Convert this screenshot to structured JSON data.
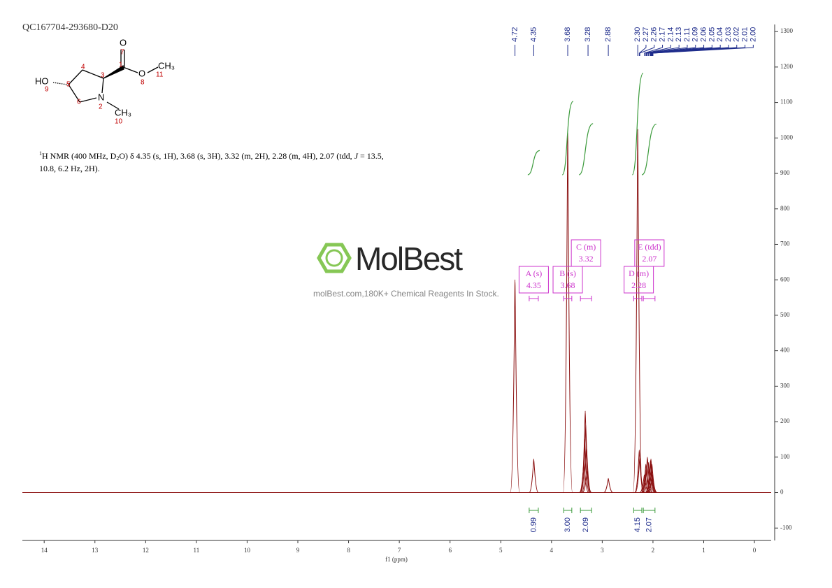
{
  "chart_data": {
    "type": "nmr",
    "compound_id": "QC167704-293680-D20",
    "nmr_text": {
      "line1": [
        "1",
        "H NMR (400 MHz, D",
        "2",
        "O) δ 4.35 (s, 1H), 3.68 (s, 3H), 3.32 (m, 2H), 2.28 (m, 4H), 2.07 (tdd, ",
        "J",
        " = 13.5,"
      ],
      "line2": "10.8, 6.2 Hz, 2H)."
    },
    "structure": {
      "atoms": [
        "O",
        "O",
        "CH₃",
        "HO",
        "N",
        "CH₃"
      ],
      "numbers": [
        "7",
        "1",
        "3",
        "4",
        "5",
        "9",
        "6",
        "2",
        "8",
        "11",
        "10"
      ]
    },
    "watermark": {
      "brand": "MolBest",
      "tagline": "molBest.com,180K+ Chemical Reagents In Stock."
    },
    "xlabel": "f1 (ppm)",
    "xlim": [
      14.43,
      -0.33
    ],
    "xticks": [
      14,
      13,
      12,
      11,
      10,
      9,
      8,
      7,
      6,
      5,
      4,
      3,
      2,
      1,
      0
    ],
    "ylim": [
      -135,
      1320
    ],
    "yticks": [
      -100,
      0,
      100,
      200,
      300,
      400,
      500,
      600,
      700,
      800,
      900,
      1000,
      1100,
      1200,
      1300
    ],
    "spectrum": {
      "color": "#8b1010",
      "x": [
        4.72,
        4.35,
        3.68,
        3.36,
        3.345,
        3.335,
        3.325,
        3.31,
        3.3,
        2.88,
        2.3,
        2.27,
        2.26,
        2.17,
        2.14,
        2.13,
        2.11,
        2.09,
        2.06,
        2.05,
        2.04,
        2.03,
        2.02,
        2.01
      ],
      "values": [
        600,
        95,
        1015,
        90,
        150,
        230,
        190,
        130,
        60,
        40,
        1025,
        120,
        100,
        50,
        80,
        70,
        100,
        85,
        70,
        90,
        95,
        60,
        80,
        50
      ]
    },
    "peak_labels": {
      "color": "#1f2d8c",
      "labels": [
        "4.72",
        "4.35",
        "3.68",
        "3.28",
        "2.88",
        "2.30",
        "2.27",
        "2.26",
        "2.17",
        "2.14",
        "2.13",
        "2.11",
        "2.09",
        "2.06",
        "2.05",
        "2.04",
        "2.03",
        "2.02",
        "2.01",
        "2.00"
      ]
    },
    "integrals": {
      "color": "#3a9a3a",
      "label_color": "#1f2d8c",
      "values": [
        0.99,
        3.0,
        2.09,
        4.15,
        2.07
      ],
      "value_labels": [
        "0.99",
        "3.00",
        "2.09",
        "4.15",
        "2.07"
      ],
      "from": [
        4.44,
        3.76,
        3.43,
        2.38,
        2.19
      ],
      "to": [
        4.26,
        3.6,
        3.21,
        2.22,
        1.96
      ]
    },
    "multiplets": {
      "color": "#cc33cc",
      "labels": [
        "A (s)",
        "B (s)",
        "C (m)",
        "D (m)",
        "E (tdd)"
      ],
      "shifts": [
        "4.35",
        "3.68",
        "3.32",
        "2.28",
        "2.07"
      ]
    }
  }
}
